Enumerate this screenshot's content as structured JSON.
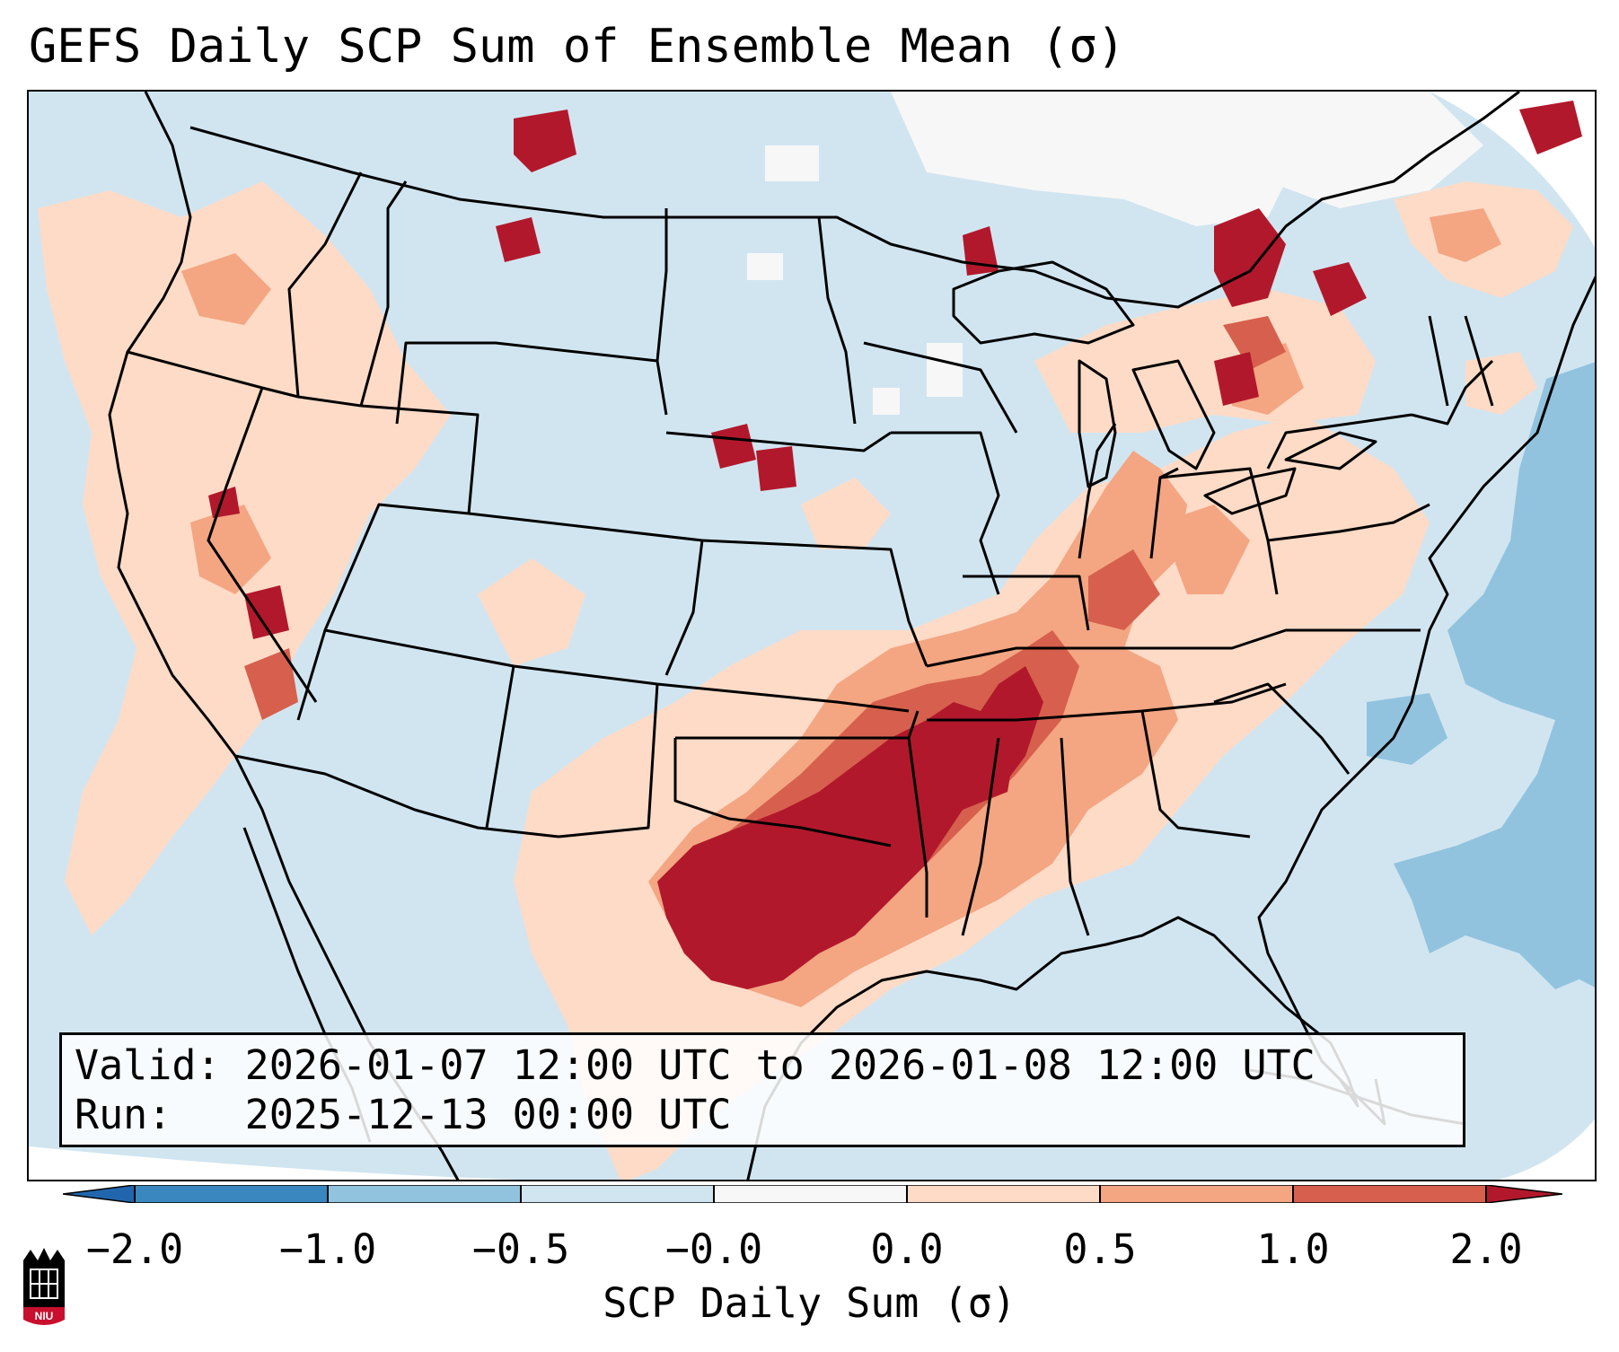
{
  "title": "GEFS Daily SCP Sum of Ensemble Mean (σ)",
  "info": {
    "valid_label": "Valid:",
    "valid_value": "2026-01-07 12:00 UTC to 2026-01-08 12:00 UTC",
    "run_label": "Run:",
    "run_value": "2025-12-13 00:00 UTC"
  },
  "colorbar": {
    "label": "SCP Daily Sum (σ)",
    "ticks": [
      "−2.0",
      "−1.0",
      "−0.5",
      "−0.0",
      "0.0",
      "0.5",
      "1.0",
      "2.0"
    ],
    "colors": [
      "#3a87c0",
      "#92c3de",
      "#d1e5f0",
      "#f7f7f7",
      "#fddbc7",
      "#f4a582",
      "#d6604d",
      "#b2182b"
    ]
  },
  "legend_colors": {
    "neg_extreme": "#3a87c0",
    "neg_mid": "#92c3de",
    "neg_low": "#d1e5f0",
    "neutral": "#f7f7f7",
    "pos_low": "#fddbc7",
    "pos_mid": "#f4a582",
    "pos_high": "#d6604d",
    "pos_extreme": "#b2182b"
  },
  "logo_text": "NIU"
}
